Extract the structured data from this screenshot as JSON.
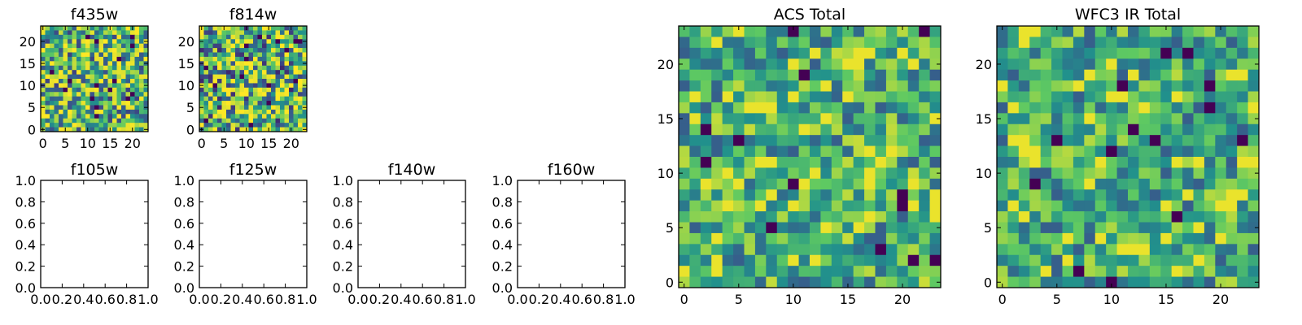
{
  "chart_data": [
    {
      "type": "heatmap",
      "title": "f435w",
      "grid_size": 24,
      "xlim": [
        -0.5,
        23.5
      ],
      "ylim": [
        -0.5,
        23.5
      ],
      "xticks": [
        0,
        5,
        10,
        15,
        20
      ],
      "yticks": [
        0,
        5,
        10,
        15,
        20
      ],
      "colormap": "viridis",
      "contrast": 0.85,
      "seed": 11
    },
    {
      "type": "heatmap",
      "title": "f814w",
      "grid_size": 24,
      "xlim": [
        -0.5,
        23.5
      ],
      "ylim": [
        -0.5,
        23.5
      ],
      "xticks": [
        0,
        5,
        10,
        15,
        20
      ],
      "yticks": [
        0,
        5,
        10,
        15,
        20
      ],
      "colormap": "viridis",
      "contrast": 1.0,
      "seed": 23
    },
    {
      "type": "empty",
      "title": "f105w",
      "xlim": [
        0,
        1
      ],
      "ylim": [
        0,
        1
      ],
      "xticks": [
        "0.0",
        "0.2",
        "0.4",
        "0.6",
        "0.8",
        "1.0"
      ],
      "yticks": [
        "0.0",
        "0.2",
        "0.4",
        "0.6",
        "0.8",
        "1.0"
      ]
    },
    {
      "type": "empty",
      "title": "f125w",
      "xlim": [
        0,
        1
      ],
      "ylim": [
        0,
        1
      ],
      "xticks": [
        "0.0",
        "0.2",
        "0.4",
        "0.6",
        "0.8",
        "1.0"
      ],
      "yticks": [
        "0.0",
        "0.2",
        "0.4",
        "0.6",
        "0.8",
        "1.0"
      ]
    },
    {
      "type": "empty",
      "title": "f140w",
      "xlim": [
        0,
        1
      ],
      "ylim": [
        0,
        1
      ],
      "xticks": [
        "0.0",
        "0.2",
        "0.4",
        "0.6",
        "0.8",
        "1.0"
      ],
      "yticks": [
        "0.0",
        "0.2",
        "0.4",
        "0.6",
        "0.8",
        "1.0"
      ]
    },
    {
      "type": "empty",
      "title": "f160w",
      "xlim": [
        0,
        1
      ],
      "ylim": [
        0,
        1
      ],
      "xticks": [
        "0.0",
        "0.2",
        "0.4",
        "0.6",
        "0.8",
        "1.0"
      ],
      "yticks": [
        "0.0",
        "0.2",
        "0.4",
        "0.6",
        "0.8",
        "1.0"
      ]
    },
    {
      "type": "heatmap",
      "title": "ACS Total",
      "grid_size": 24,
      "xlim": [
        -0.5,
        23.5
      ],
      "ylim": [
        -0.5,
        23.5
      ],
      "xticks": [
        0,
        5,
        10,
        15,
        20
      ],
      "yticks": [
        0,
        5,
        10,
        15,
        20
      ],
      "colormap": "viridis",
      "contrast": 0.6,
      "seed": 37
    },
    {
      "type": "heatmap",
      "title": "WFC3 IR Total",
      "grid_size": 24,
      "xlim": [
        -0.5,
        23.5
      ],
      "ylim": [
        -0.5,
        23.5
      ],
      "xticks": [
        0,
        5,
        10,
        15,
        20
      ],
      "yticks": [
        0,
        5,
        10,
        15,
        20
      ],
      "colormap": "viridis",
      "contrast": 0.55,
      "seed": 53
    }
  ]
}
